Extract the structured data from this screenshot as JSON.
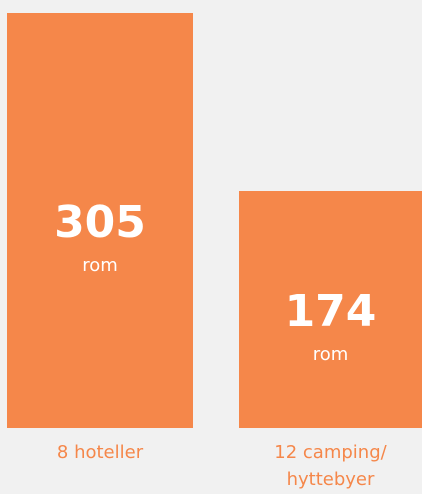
{
  "chart_data": {
    "type": "bar",
    "categories": [
      "8 hoteller",
      "12 camping/ hyttebyer"
    ],
    "values": [
      305,
      174
    ],
    "value_unit": "rom",
    "color": "#f5874a"
  }
}
